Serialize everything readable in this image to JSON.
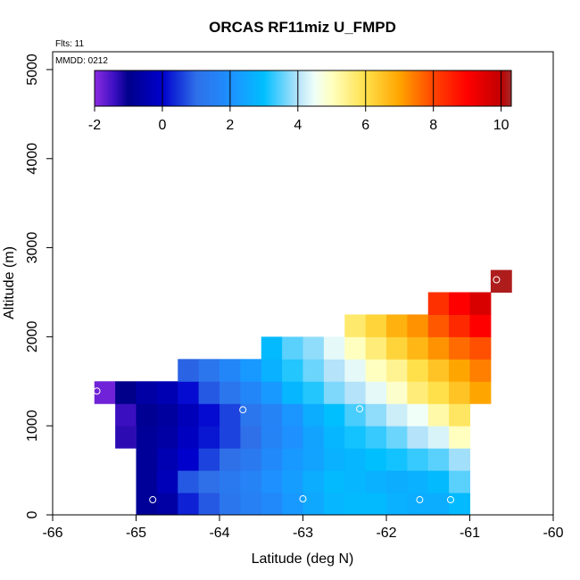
{
  "chart_data": {
    "type": "heatmap",
    "title": "ORCAS RF11miz U_FMPD",
    "annotations": [
      "Flts: 11",
      "MMDD: 0212"
    ],
    "xlabel": "Latitude (deg N)",
    "ylabel": "Altitude (m)",
    "xlim": [
      -66,
      -60
    ],
    "ylim": [
      0,
      5200
    ],
    "x_ticks": [
      -66,
      -65,
      -64,
      -63,
      -62,
      -61,
      -60
    ],
    "y_ticks": [
      0,
      1000,
      2000,
      3000,
      4000,
      5000
    ],
    "grid": false,
    "colorbar": {
      "position": "top",
      "range": [
        -2,
        10.3
      ],
      "ticks": [
        -2,
        0,
        2,
        4,
        6,
        8,
        10
      ],
      "colors": [
        {
          "v": -2.0,
          "c": "#8a2be2"
        },
        {
          "v": -1.4,
          "c": "#3a0fc0"
        },
        {
          "v": -1.0,
          "c": "#00008b"
        },
        {
          "v": 0.0,
          "c": "#0000cd"
        },
        {
          "v": 1.0,
          "c": "#2f6fe8"
        },
        {
          "v": 2.0,
          "c": "#1e90ff"
        },
        {
          "v": 3.0,
          "c": "#00bfff"
        },
        {
          "v": 4.0,
          "c": "#b4e3fa"
        },
        {
          "v": 4.5,
          "c": "#f0fff8"
        },
        {
          "v": 5.0,
          "c": "#ffffc0"
        },
        {
          "v": 6.0,
          "c": "#ffe04a"
        },
        {
          "v": 7.0,
          "c": "#ffa500"
        },
        {
          "v": 8.0,
          "c": "#ff4500"
        },
        {
          "v": 9.0,
          "c": "#ff0000"
        },
        {
          "v": 10.0,
          "c": "#c00000"
        },
        {
          "v": 10.3,
          "c": "#a52a2a"
        }
      ]
    },
    "cell": {
      "lat_width": 0.25,
      "alt_height": 250
    },
    "cells": [
      {
        "lat": -64.875,
        "alt": 125,
        "v": -0.8
      },
      {
        "lat": -64.625,
        "alt": 125,
        "v": -0.6
      },
      {
        "lat": -64.375,
        "alt": 125,
        "v": 0.3
      },
      {
        "lat": -64.125,
        "alt": 125,
        "v": 0.8
      },
      {
        "lat": -63.875,
        "alt": 125,
        "v": 1.2
      },
      {
        "lat": -63.625,
        "alt": 125,
        "v": 1.5
      },
      {
        "lat": -63.375,
        "alt": 125,
        "v": 1.8
      },
      {
        "lat": -63.125,
        "alt": 125,
        "v": 2.2
      },
      {
        "lat": -62.875,
        "alt": 125,
        "v": 2.5
      },
      {
        "lat": -62.625,
        "alt": 125,
        "v": 2.8
      },
      {
        "lat": -62.375,
        "alt": 125,
        "v": 2.9
      },
      {
        "lat": -62.125,
        "alt": 125,
        "v": 2.9
      },
      {
        "lat": -61.875,
        "alt": 125,
        "v": 2.7
      },
      {
        "lat": -61.625,
        "alt": 125,
        "v": 2.6
      },
      {
        "lat": -61.375,
        "alt": 125,
        "v": 2.6
      },
      {
        "lat": -61.125,
        "alt": 125,
        "v": 2.9
      },
      {
        "lat": -64.875,
        "alt": 375,
        "v": -0.8
      },
      {
        "lat": -64.625,
        "alt": 375,
        "v": -0.3
      },
      {
        "lat": -64.375,
        "alt": 375,
        "v": 0.8
      },
      {
        "lat": -64.125,
        "alt": 375,
        "v": 1.0
      },
      {
        "lat": -63.875,
        "alt": 375,
        "v": 1.3
      },
      {
        "lat": -63.625,
        "alt": 375,
        "v": 1.6
      },
      {
        "lat": -63.375,
        "alt": 375,
        "v": 2.0
      },
      {
        "lat": -63.125,
        "alt": 375,
        "v": 2.3
      },
      {
        "lat": -62.875,
        "alt": 375,
        "v": 2.6
      },
      {
        "lat": -62.625,
        "alt": 375,
        "v": 2.9
      },
      {
        "lat": -62.375,
        "alt": 375,
        "v": 2.8
      },
      {
        "lat": -62.125,
        "alt": 375,
        "v": 2.7
      },
      {
        "lat": -61.875,
        "alt": 375,
        "v": 2.6
      },
      {
        "lat": -61.625,
        "alt": 375,
        "v": 2.7
      },
      {
        "lat": -61.375,
        "alt": 375,
        "v": 2.9
      },
      {
        "lat": -61.125,
        "alt": 375,
        "v": 3.5
      },
      {
        "lat": -64.875,
        "alt": 625,
        "v": -0.8
      },
      {
        "lat": -64.625,
        "alt": 625,
        "v": -0.4
      },
      {
        "lat": -64.375,
        "alt": 625,
        "v": 0.0
      },
      {
        "lat": -64.125,
        "alt": 625,
        "v": 0.6
      },
      {
        "lat": -63.875,
        "alt": 625,
        "v": 1.0
      },
      {
        "lat": -63.625,
        "alt": 625,
        "v": 1.3
      },
      {
        "lat": -63.375,
        "alt": 625,
        "v": 1.8
      },
      {
        "lat": -63.125,
        "alt": 625,
        "v": 2.2
      },
      {
        "lat": -62.875,
        "alt": 625,
        "v": 2.4
      },
      {
        "lat": -62.625,
        "alt": 625,
        "v": 2.7
      },
      {
        "lat": -62.375,
        "alt": 625,
        "v": 2.8
      },
      {
        "lat": -62.125,
        "alt": 625,
        "v": 3.0
      },
      {
        "lat": -61.875,
        "alt": 625,
        "v": 3.1
      },
      {
        "lat": -61.625,
        "alt": 625,
        "v": 3.3
      },
      {
        "lat": -61.375,
        "alt": 625,
        "v": 3.5
      },
      {
        "lat": -61.125,
        "alt": 625,
        "v": 3.9
      },
      {
        "lat": -64.875,
        "alt": 875,
        "v": -0.8
      },
      {
        "lat": -64.625,
        "alt": 875,
        "v": -0.6
      },
      {
        "lat": -64.375,
        "alt": 875,
        "v": -0.2
      },
      {
        "lat": -64.125,
        "alt": 875,
        "v": 0.2
      },
      {
        "lat": -63.875,
        "alt": 875,
        "v": 0.6
      },
      {
        "lat": -63.625,
        "alt": 875,
        "v": 1.0
      },
      {
        "lat": -63.375,
        "alt": 875,
        "v": 1.6
      },
      {
        "lat": -63.125,
        "alt": 875,
        "v": 2.0
      },
      {
        "lat": -62.875,
        "alt": 875,
        "v": 2.4
      },
      {
        "lat": -62.625,
        "alt": 875,
        "v": 2.8
      },
      {
        "lat": -62.375,
        "alt": 875,
        "v": 3.1
      },
      {
        "lat": -62.125,
        "alt": 875,
        "v": 3.3
      },
      {
        "lat": -61.875,
        "alt": 875,
        "v": 3.6
      },
      {
        "lat": -61.625,
        "alt": 875,
        "v": 4.0
      },
      {
        "lat": -61.375,
        "alt": 875,
        "v": 4.3
      },
      {
        "lat": -61.125,
        "alt": 875,
        "v": 5.0
      },
      {
        "lat": -65.125,
        "alt": 875,
        "v": -1.3
      },
      {
        "lat": -65.125,
        "alt": 1125,
        "v": -1.4
      },
      {
        "lat": -64.875,
        "alt": 1125,
        "v": -0.9
      },
      {
        "lat": -64.625,
        "alt": 1125,
        "v": -0.7
      },
      {
        "lat": -64.375,
        "alt": 1125,
        "v": -0.3
      },
      {
        "lat": -64.125,
        "alt": 1125,
        "v": 0.1
      },
      {
        "lat": -63.875,
        "alt": 1125,
        "v": 0.6
      },
      {
        "lat": -63.625,
        "alt": 1125,
        "v": 1.2
      },
      {
        "lat": -63.375,
        "alt": 1125,
        "v": 1.6
      },
      {
        "lat": -63.125,
        "alt": 1125,
        "v": 2.1
      },
      {
        "lat": -62.875,
        "alt": 1125,
        "v": 2.6
      },
      {
        "lat": -62.625,
        "alt": 1125,
        "v": 3.0
      },
      {
        "lat": -62.375,
        "alt": 1125,
        "v": 3.4
      },
      {
        "lat": -62.125,
        "alt": 1125,
        "v": 3.8
      },
      {
        "lat": -61.875,
        "alt": 1125,
        "v": 4.2
      },
      {
        "lat": -61.625,
        "alt": 1125,
        "v": 4.5
      },
      {
        "lat": -61.375,
        "alt": 1125,
        "v": 5.2
      },
      {
        "lat": -61.125,
        "alt": 1125,
        "v": 5.8
      },
      {
        "lat": -65.375,
        "alt": 1375,
        "v": -1.8
      },
      {
        "lat": -65.125,
        "alt": 1375,
        "v": -1.0
      },
      {
        "lat": -64.875,
        "alt": 1375,
        "v": -0.6
      },
      {
        "lat": -64.625,
        "alt": 1375,
        "v": -0.4
      },
      {
        "lat": -64.375,
        "alt": 1375,
        "v": 0.1
      },
      {
        "lat": -64.125,
        "alt": 1375,
        "v": 0.8
      },
      {
        "lat": -63.875,
        "alt": 1375,
        "v": 1.2
      },
      {
        "lat": -63.625,
        "alt": 1375,
        "v": 1.7
      },
      {
        "lat": -63.375,
        "alt": 1375,
        "v": 2.2
      },
      {
        "lat": -63.125,
        "alt": 1375,
        "v": 2.8
      },
      {
        "lat": -62.875,
        "alt": 1375,
        "v": 3.2
      },
      {
        "lat": -62.625,
        "alt": 1375,
        "v": 3.7
      },
      {
        "lat": -62.375,
        "alt": 1375,
        "v": 4.0
      },
      {
        "lat": -62.125,
        "alt": 1375,
        "v": 4.4
      },
      {
        "lat": -61.875,
        "alt": 1375,
        "v": 4.9
      },
      {
        "lat": -61.625,
        "alt": 1375,
        "v": 5.6
      },
      {
        "lat": -61.375,
        "alt": 1375,
        "v": 6.0
      },
      {
        "lat": -61.125,
        "alt": 1375,
        "v": 6.5
      },
      {
        "lat": -60.875,
        "alt": 1375,
        "v": 7.0
      },
      {
        "lat": -64.375,
        "alt": 1625,
        "v": 0.9
      },
      {
        "lat": -64.125,
        "alt": 1625,
        "v": 1.2
      },
      {
        "lat": -63.875,
        "alt": 1625,
        "v": 1.7
      },
      {
        "lat": -63.625,
        "alt": 1625,
        "v": 2.2
      },
      {
        "lat": -63.375,
        "alt": 1625,
        "v": 2.7
      },
      {
        "lat": -63.125,
        "alt": 1625,
        "v": 3.2
      },
      {
        "lat": -62.875,
        "alt": 1625,
        "v": 3.6
      },
      {
        "lat": -62.625,
        "alt": 1625,
        "v": 4.0
      },
      {
        "lat": -62.375,
        "alt": 1625,
        "v": 4.4
      },
      {
        "lat": -62.125,
        "alt": 1625,
        "v": 5.0
      },
      {
        "lat": -61.875,
        "alt": 1625,
        "v": 5.4
      },
      {
        "lat": -61.625,
        "alt": 1625,
        "v": 6.0
      },
      {
        "lat": -61.375,
        "alt": 1625,
        "v": 6.5
      },
      {
        "lat": -61.125,
        "alt": 1625,
        "v": 7.0
      },
      {
        "lat": -60.875,
        "alt": 1625,
        "v": 7.4
      },
      {
        "lat": -63.375,
        "alt": 1875,
        "v": 2.9
      },
      {
        "lat": -63.125,
        "alt": 1875,
        "v": 3.5
      },
      {
        "lat": -62.875,
        "alt": 1875,
        "v": 3.8
      },
      {
        "lat": -62.625,
        "alt": 1875,
        "v": 4.4
      },
      {
        "lat": -62.375,
        "alt": 1875,
        "v": 5.0
      },
      {
        "lat": -62.125,
        "alt": 1875,
        "v": 5.6
      },
      {
        "lat": -61.875,
        "alt": 1875,
        "v": 6.2
      },
      {
        "lat": -61.625,
        "alt": 1875,
        "v": 6.7
      },
      {
        "lat": -61.375,
        "alt": 1875,
        "v": 7.2
      },
      {
        "lat": -61.125,
        "alt": 1875,
        "v": 7.6
      },
      {
        "lat": -60.875,
        "alt": 1875,
        "v": 7.9
      },
      {
        "lat": -62.375,
        "alt": 2125,
        "v": 5.7
      },
      {
        "lat": -62.125,
        "alt": 2125,
        "v": 6.2
      },
      {
        "lat": -61.875,
        "alt": 2125,
        "v": 6.8
      },
      {
        "lat": -61.625,
        "alt": 2125,
        "v": 7.2
      },
      {
        "lat": -61.375,
        "alt": 2125,
        "v": 7.8
      },
      {
        "lat": -61.125,
        "alt": 2125,
        "v": 8.4
      },
      {
        "lat": -60.875,
        "alt": 2125,
        "v": 9.0
      },
      {
        "lat": -61.375,
        "alt": 2375,
        "v": 8.3
      },
      {
        "lat": -61.125,
        "alt": 2375,
        "v": 9.0
      },
      {
        "lat": -60.875,
        "alt": 2375,
        "v": 9.6
      },
      {
        "lat": -60.625,
        "alt": 2625,
        "v": 10.2
      }
    ],
    "flight_points": [
      {
        "lat": -65.47,
        "alt": 1390
      },
      {
        "lat": -64.8,
        "alt": 170
      },
      {
        "lat": -63.72,
        "alt": 1180
      },
      {
        "lat": -63.0,
        "alt": 180
      },
      {
        "lat": -62.32,
        "alt": 1190
      },
      {
        "lat": -61.6,
        "alt": 170
      },
      {
        "lat": -61.23,
        "alt": 170
      },
      {
        "lat": -60.68,
        "alt": 2640
      }
    ]
  }
}
